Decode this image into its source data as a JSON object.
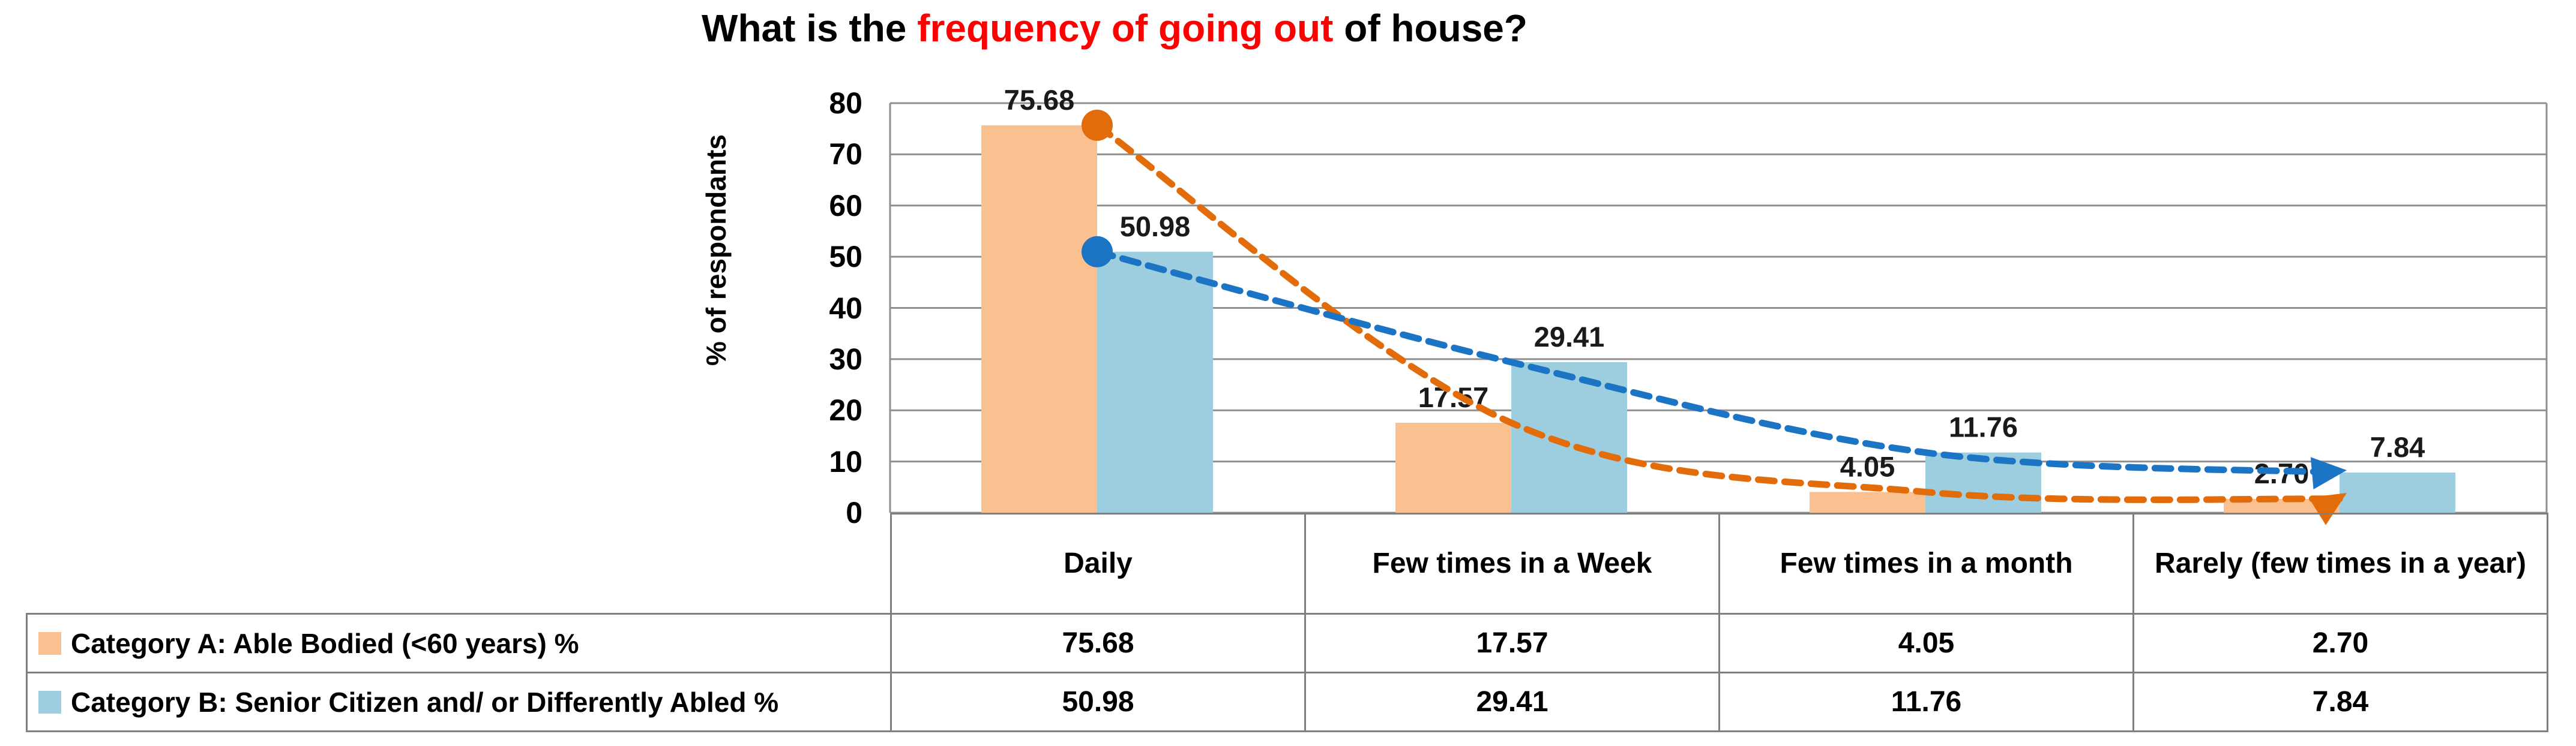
{
  "title": {
    "prefix": "What is the ",
    "highlight": "frequency of going out",
    "suffix": " of house?",
    "highlight_color": "#FF0000"
  },
  "y_axis": {
    "label": "% of respondants",
    "ticks": [
      80,
      70,
      60,
      50,
      40,
      30,
      20,
      10,
      0
    ]
  },
  "chart_data": {
    "type": "bar",
    "title": "What is the frequency of going out of house?",
    "xlabel": "",
    "ylabel": "% of respondants",
    "ylim": [
      0,
      80
    ],
    "grid": true,
    "legend_position": "left column of data table below chart",
    "overlay": "smoothed dashed trend line per series with start dot marker and end arrowhead",
    "data_table_shown": true,
    "categories": [
      "Daily",
      "Few times in a Week",
      "Few times in a month",
      "Rarely (few times in a year)"
    ],
    "series": [
      {
        "name": "Category A: Able Bodied (<60 years) %",
        "values": [
          75.68,
          17.57,
          4.05,
          2.7
        ],
        "labels": [
          "75.68",
          "17.57",
          "4.05",
          "2.70"
        ],
        "bar_color": "#FAC090",
        "line_color": "#E36C0A"
      },
      {
        "name": "Category B: Senior Citizen and/ or Differently Abled %",
        "values": [
          50.98,
          29.41,
          11.76,
          7.84
        ],
        "labels": [
          "50.98",
          "29.41",
          "11.76",
          "7.84"
        ],
        "bar_color": "#9DCEDF",
        "line_color": "#1B74C4"
      }
    ]
  }
}
